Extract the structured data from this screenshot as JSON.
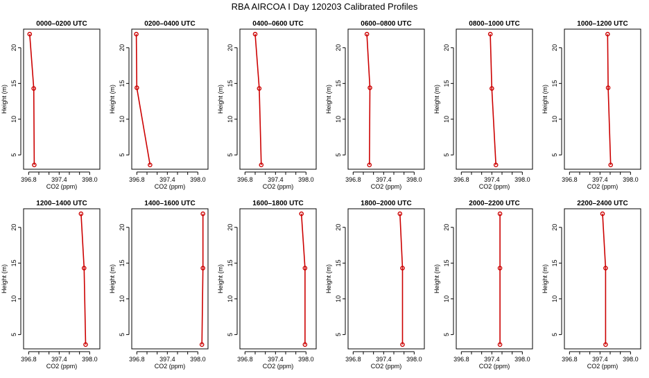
{
  "title": "RBA AIRCOA I  Day 120203  Calibrated Profiles",
  "chart_data": {
    "type": "line",
    "xlabel": "CO2 (ppm)",
    "ylabel": "Height (m)",
    "xlim": [
      396.7,
      398.2
    ],
    "ylim": [
      3,
      22.6
    ],
    "xticks": [
      "396.8",
      "397.4",
      "398.0"
    ],
    "yticks": [
      "5",
      "10",
      "15",
      "20"
    ],
    "line_color": "#cc0000",
    "panels": [
      {
        "title": "0000–0200 UTC",
        "points": [
          {
            "x": 396.82,
            "y": 21.9
          },
          {
            "x": 396.9,
            "y": 14.3
          },
          {
            "x": 396.91,
            "y": 3.6
          }
        ]
      },
      {
        "title": "0200–0400 UTC",
        "points": [
          {
            "x": 396.79,
            "y": 21.9
          },
          {
            "x": 396.8,
            "y": 14.4
          },
          {
            "x": 397.06,
            "y": 3.6
          }
        ]
      },
      {
        "title": "0400–0600 UTC",
        "points": [
          {
            "x": 397.0,
            "y": 21.9
          },
          {
            "x": 397.08,
            "y": 14.3
          },
          {
            "x": 397.12,
            "y": 3.6
          }
        ]
      },
      {
        "title": "0600–0800 UTC",
        "points": [
          {
            "x": 397.07,
            "y": 21.9
          },
          {
            "x": 397.13,
            "y": 14.4
          },
          {
            "x": 397.12,
            "y": 3.6
          }
        ]
      },
      {
        "title": "0800–1000 UTC",
        "points": [
          {
            "x": 397.37,
            "y": 21.9
          },
          {
            "x": 397.4,
            "y": 14.3
          },
          {
            "x": 397.48,
            "y": 3.6
          }
        ]
      },
      {
        "title": "1000–1200 UTC",
        "points": [
          {
            "x": 397.55,
            "y": 21.9
          },
          {
            "x": 397.56,
            "y": 14.4
          },
          {
            "x": 397.61,
            "y": 3.6
          }
        ]
      },
      {
        "title": "1200–1400 UTC",
        "points": [
          {
            "x": 397.83,
            "y": 21.9
          },
          {
            "x": 397.89,
            "y": 14.3
          },
          {
            "x": 397.92,
            "y": 3.6
          }
        ]
      },
      {
        "title": "1400–1600 UTC",
        "points": [
          {
            "x": 398.1,
            "y": 21.9
          },
          {
            "x": 398.1,
            "y": 14.3
          },
          {
            "x": 398.08,
            "y": 3.6
          }
        ]
      },
      {
        "title": "1600–1800 UTC",
        "points": [
          {
            "x": 397.91,
            "y": 21.9
          },
          {
            "x": 397.98,
            "y": 14.3
          },
          {
            "x": 397.98,
            "y": 3.6
          }
        ]
      },
      {
        "title": "1800–2000 UTC",
        "points": [
          {
            "x": 397.72,
            "y": 21.9
          },
          {
            "x": 397.77,
            "y": 14.3
          },
          {
            "x": 397.77,
            "y": 3.6
          }
        ]
      },
      {
        "title": "2000–2200 UTC",
        "points": [
          {
            "x": 397.56,
            "y": 21.9
          },
          {
            "x": 397.56,
            "y": 14.3
          },
          {
            "x": 397.56,
            "y": 3.6
          }
        ]
      },
      {
        "title": "2200–2400 UTC",
        "points": [
          {
            "x": 397.45,
            "y": 21.9
          },
          {
            "x": 397.51,
            "y": 14.3
          },
          {
            "x": 397.51,
            "y": 3.6
          }
        ]
      }
    ]
  }
}
